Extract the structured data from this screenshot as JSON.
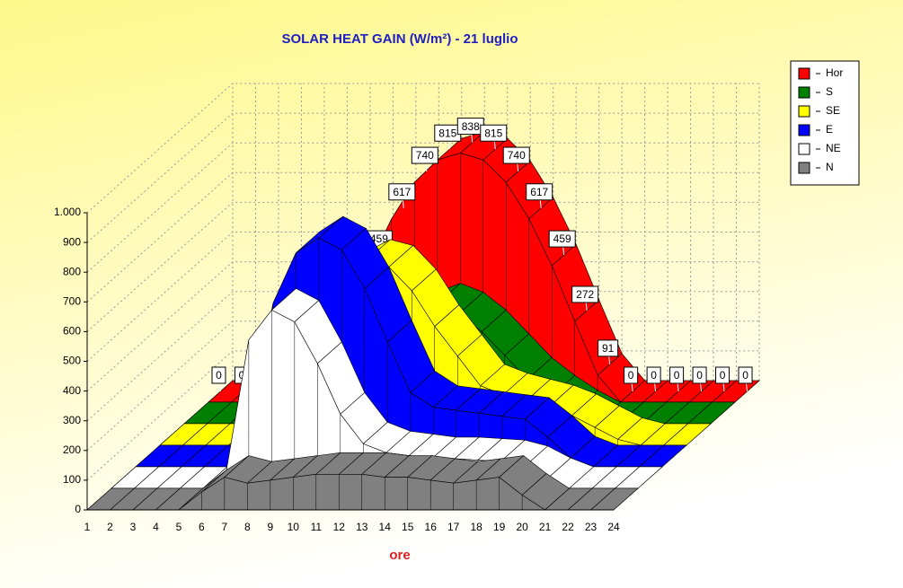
{
  "chart_data": {
    "type": "area3d",
    "title": "SOLAR HEAT GAIN (W/m²) - 21 luglio",
    "x_label": "ore",
    "categories": [
      "1",
      "2",
      "3",
      "4",
      "5",
      "6",
      "7",
      "8",
      "9",
      "10",
      "11",
      "12",
      "13",
      "14",
      "15",
      "16",
      "17",
      "18",
      "19",
      "20",
      "21",
      "22",
      "23",
      "24"
    ],
    "series": [
      {
        "name": "Hor",
        "color": "#ff0000",
        "values": [
          0,
          0,
          0,
          0,
          0,
          91,
          272,
          459,
          617,
          740,
          815,
          838,
          815,
          740,
          617,
          459,
          272,
          91,
          0,
          0,
          0,
          0,
          0,
          0
        ]
      },
      {
        "name": "S",
        "color": "#008000",
        "values": [
          0,
          0,
          0,
          0,
          0,
          40,
          90,
          150,
          230,
          310,
          370,
          400,
          370,
          310,
          230,
          150,
          90,
          40,
          0,
          0,
          0,
          0,
          0,
          0
        ]
      },
      {
        "name": "SE",
        "color": "#ffff00",
        "values": [
          0,
          0,
          0,
          0,
          0,
          80,
          300,
          470,
          580,
          620,
          600,
          520,
          400,
          300,
          200,
          170,
          150,
          130,
          100,
          60,
          20,
          0,
          0,
          0
        ]
      },
      {
        "name": "E",
        "color": "#0000ff",
        "values": [
          0,
          0,
          0,
          0,
          0,
          150,
          550,
          720,
          770,
          730,
          600,
          420,
          250,
          200,
          190,
          180,
          170,
          160,
          100,
          30,
          0,
          0,
          0,
          0
        ]
      },
      {
        "name": "NE",
        "color": "#ffffff",
        "values": [
          0,
          0,
          0,
          0,
          0,
          50,
          500,
          600,
          560,
          420,
          250,
          150,
          120,
          110,
          100,
          100,
          95,
          90,
          70,
          30,
          0,
          0,
          0,
          0
        ]
      },
      {
        "name": "N",
        "color": "#808080",
        "values": [
          0,
          0,
          0,
          0,
          0,
          60,
          110,
          90,
          100,
          110,
          120,
          120,
          120,
          110,
          110,
          100,
          90,
          100,
          110,
          50,
          0,
          0,
          0,
          0
        ]
      }
    ],
    "value_label_series": 0,
    "ylim": [
      0,
      1000
    ],
    "yticks": [
      0,
      100,
      200,
      300,
      400,
      500,
      600,
      700,
      800,
      900,
      {
        "value": 1000,
        "label": "1.000"
      }
    ],
    "grid": true
  }
}
